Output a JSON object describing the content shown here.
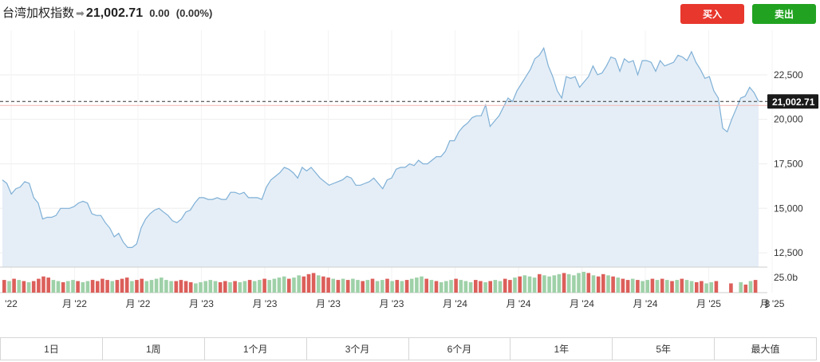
{
  "header": {
    "index_name": "台湾加权指数",
    "arrow_glyph": "➡",
    "price": "21,002.71",
    "change": "0.00",
    "change_pct": "(0.00%)",
    "buy_label": "买入",
    "sell_label": "卖出",
    "buy_color": "#e8372d",
    "sell_color": "#21a321"
  },
  "ranges": [
    "1日",
    "1周",
    "1个月",
    "3个月",
    "6个月",
    "1年",
    "5年",
    "最大值"
  ],
  "chart_data": {
    "type": "area",
    "line_color": "#7fb0d6",
    "fill_color": "#e5eef7",
    "current_value": 21002.71,
    "current_label": "21,002.71",
    "ylim": [
      11700,
      25000
    ],
    "y_ticks": [
      {
        "value": 12500,
        "label": "12,500"
      },
      {
        "value": 15000,
        "label": "15,000"
      },
      {
        "value": 17500,
        "label": "17,500"
      },
      {
        "value": 20000,
        "label": "20,000"
      },
      {
        "value": 22500,
        "label": "22,500"
      }
    ],
    "x_tick_labels": [
      "'22",
      "月 '22",
      "月 '22",
      "月 '23",
      "月 '23",
      "月 '23",
      "月 '23",
      "月 '24",
      "月 '24",
      "月 '24",
      "月 '24",
      "月 '25",
      "月 '25",
      "8"
    ],
    "volume_label": "25.0b",
    "values": [
      16600,
      16400,
      15800,
      16100,
      16200,
      16500,
      16400,
      15600,
      15300,
      14400,
      14500,
      14500,
      14600,
      15000,
      15000,
      15000,
      15100,
      15300,
      15400,
      15300,
      14700,
      14600,
      14600,
      14200,
      13900,
      13400,
      13600,
      13100,
      12800,
      12800,
      13000,
      13900,
      14400,
      14700,
      14900,
      15000,
      14800,
      14600,
      14300,
      14200,
      14400,
      14800,
      14900,
      15300,
      15600,
      15600,
      15500,
      15500,
      15600,
      15500,
      15500,
      15900,
      15900,
      15800,
      15900,
      15600,
      15600,
      15600,
      15500,
      16200,
      16600,
      16800,
      17000,
      17300,
      17200,
      17000,
      16700,
      17300,
      17100,
      17300,
      17000,
      16700,
      16500,
      16300,
      16400,
      16500,
      16600,
      16800,
      16700,
      16300,
      16300,
      16400,
      16500,
      16700,
      16400,
      16100,
      16600,
      16700,
      17200,
      17300,
      17300,
      17500,
      17400,
      17700,
      17500,
      17500,
      17700,
      17900,
      17900,
      18200,
      18800,
      18800,
      19300,
      19600,
      19800,
      20100,
      20200,
      20200,
      20800,
      19600,
      19900,
      20200,
      20700,
      21200,
      21000,
      21600,
      22000,
      22400,
      22800,
      23400,
      23600,
      24000,
      23000,
      22400,
      21600,
      21200,
      22400,
      22300,
      22400,
      21800,
      22100,
      22400,
      23000,
      22500,
      22600,
      23000,
      23500,
      23400,
      22700,
      23400,
      23200,
      23300,
      22500,
      23300,
      23300,
      23200,
      22700,
      23300,
      23000,
      23100,
      23200,
      23600,
      23500,
      23300,
      23800,
      23200,
      22800,
      22300,
      22400,
      21600,
      21200,
      19500,
      19300,
      20000,
      20600,
      21200,
      21300,
      21800,
      21500,
      21000
    ],
    "volume": [
      {
        "v": 0.55,
        "up": false
      },
      {
        "v": 0.5,
        "up": true
      },
      {
        "v": 0.6,
        "up": false
      },
      {
        "v": 0.55,
        "up": true
      },
      {
        "v": 0.5,
        "up": false
      },
      {
        "v": 0.45,
        "up": true
      },
      {
        "v": 0.5,
        "up": false
      },
      {
        "v": 0.6,
        "up": false
      },
      {
        "v": 0.7,
        "up": false
      },
      {
        "v": 0.65,
        "up": false
      },
      {
        "v": 0.55,
        "up": true
      },
      {
        "v": 0.5,
        "up": true
      },
      {
        "v": 0.45,
        "up": false
      },
      {
        "v": 0.5,
        "up": true
      },
      {
        "v": 0.55,
        "up": true
      },
      {
        "v": 0.5,
        "up": false
      },
      {
        "v": 0.45,
        "up": true
      },
      {
        "v": 0.5,
        "up": true
      },
      {
        "v": 0.55,
        "up": false
      },
      {
        "v": 0.5,
        "up": false
      },
      {
        "v": 0.6,
        "up": false
      },
      {
        "v": 0.55,
        "up": false
      },
      {
        "v": 0.5,
        "up": true
      },
      {
        "v": 0.55,
        "up": false
      },
      {
        "v": 0.6,
        "up": false
      },
      {
        "v": 0.65,
        "up": false
      },
      {
        "v": 0.5,
        "up": true
      },
      {
        "v": 0.55,
        "up": false
      },
      {
        "v": 0.6,
        "up": false
      },
      {
        "v": 0.5,
        "up": true
      },
      {
        "v": 0.55,
        "up": true
      },
      {
        "v": 0.6,
        "up": true
      },
      {
        "v": 0.65,
        "up": true
      },
      {
        "v": 0.55,
        "up": true
      },
      {
        "v": 0.5,
        "up": true
      },
      {
        "v": 0.5,
        "up": false
      },
      {
        "v": 0.55,
        "up": false
      },
      {
        "v": 0.5,
        "up": false
      },
      {
        "v": 0.45,
        "up": false
      },
      {
        "v": 0.4,
        "up": true
      },
      {
        "v": 0.45,
        "up": true
      },
      {
        "v": 0.5,
        "up": true
      },
      {
        "v": 0.55,
        "up": true
      },
      {
        "v": 0.5,
        "up": true
      },
      {
        "v": 0.45,
        "up": false
      },
      {
        "v": 0.5,
        "up": false
      },
      {
        "v": 0.45,
        "up": true
      },
      {
        "v": 0.5,
        "up": false
      },
      {
        "v": 0.45,
        "up": true
      },
      {
        "v": 0.5,
        "up": true
      },
      {
        "v": 0.55,
        "up": false
      },
      {
        "v": 0.5,
        "up": true
      },
      {
        "v": 0.55,
        "up": true
      },
      {
        "v": 0.6,
        "up": false
      },
      {
        "v": 0.55,
        "up": true
      },
      {
        "v": 0.6,
        "up": true
      },
      {
        "v": 0.65,
        "up": true
      },
      {
        "v": 0.7,
        "up": true
      },
      {
        "v": 0.6,
        "up": false
      },
      {
        "v": 0.65,
        "up": true
      },
      {
        "v": 0.75,
        "up": true
      },
      {
        "v": 0.7,
        "up": false
      },
      {
        "v": 0.8,
        "up": false
      },
      {
        "v": 0.85,
        "up": false
      },
      {
        "v": 0.75,
        "up": true
      },
      {
        "v": 0.7,
        "up": false
      },
      {
        "v": 0.65,
        "up": false
      },
      {
        "v": 0.6,
        "up": true
      },
      {
        "v": 0.55,
        "up": false
      },
      {
        "v": 0.6,
        "up": true
      },
      {
        "v": 0.55,
        "up": false
      },
      {
        "v": 0.6,
        "up": true
      },
      {
        "v": 0.55,
        "up": true
      },
      {
        "v": 0.5,
        "up": false
      },
      {
        "v": 0.55,
        "up": true
      },
      {
        "v": 0.6,
        "up": false
      },
      {
        "v": 0.5,
        "up": true
      },
      {
        "v": 0.55,
        "up": true
      },
      {
        "v": 0.6,
        "up": false
      },
      {
        "v": 0.5,
        "up": true
      },
      {
        "v": 0.55,
        "up": false
      },
      {
        "v": 0.5,
        "up": true
      },
      {
        "v": 0.55,
        "up": false
      },
      {
        "v": 0.6,
        "up": true
      },
      {
        "v": 0.65,
        "up": true
      },
      {
        "v": 0.7,
        "up": true
      },
      {
        "v": 0.6,
        "up": false
      },
      {
        "v": 0.55,
        "up": true
      },
      {
        "v": 0.5,
        "up": false
      },
      {
        "v": 0.45,
        "up": true
      },
      {
        "v": 0.5,
        "up": true
      },
      {
        "v": 0.55,
        "up": true
      },
      {
        "v": 0.6,
        "up": false
      },
      {
        "v": 0.55,
        "up": true
      },
      {
        "v": 0.5,
        "up": true
      },
      {
        "v": 0.45,
        "up": true
      },
      {
        "v": 0.55,
        "up": false
      },
      {
        "v": 0.5,
        "up": false
      },
      {
        "v": 0.45,
        "up": true
      },
      {
        "v": 0.5,
        "up": false
      },
      {
        "v": 0.55,
        "up": true
      },
      {
        "v": 0.5,
        "up": true
      },
      {
        "v": 0.6,
        "up": false
      },
      {
        "v": 0.55,
        "up": false
      },
      {
        "v": 0.65,
        "up": true
      },
      {
        "v": 0.7,
        "up": false
      },
      {
        "v": 0.75,
        "up": true
      },
      {
        "v": 0.7,
        "up": true
      },
      {
        "v": 0.65,
        "up": true
      },
      {
        "v": 0.8,
        "up": false
      },
      {
        "v": 0.75,
        "up": true
      },
      {
        "v": 0.7,
        "up": true
      },
      {
        "v": 0.75,
        "up": true
      },
      {
        "v": 0.8,
        "up": true
      },
      {
        "v": 0.85,
        "up": false
      },
      {
        "v": 0.8,
        "up": true
      },
      {
        "v": 0.75,
        "up": true
      },
      {
        "v": 0.85,
        "up": true
      },
      {
        "v": 0.9,
        "up": true
      },
      {
        "v": 0.85,
        "up": false
      },
      {
        "v": 0.75,
        "up": true
      },
      {
        "v": 0.7,
        "up": false
      },
      {
        "v": 0.8,
        "up": false
      },
      {
        "v": 0.75,
        "up": true
      },
      {
        "v": 0.7,
        "up": false
      },
      {
        "v": 0.65,
        "up": true
      },
      {
        "v": 0.6,
        "up": false
      },
      {
        "v": 0.55,
        "up": false
      },
      {
        "v": 0.6,
        "up": true
      },
      {
        "v": 0.55,
        "up": false
      },
      {
        "v": 0.5,
        "up": true
      },
      {
        "v": 0.55,
        "up": true
      },
      {
        "v": 0.6,
        "up": false
      },
      {
        "v": 0.55,
        "up": true
      },
      {
        "v": 0.6,
        "up": false
      },
      {
        "v": 0.55,
        "up": true
      },
      {
        "v": 0.5,
        "up": false
      },
      {
        "v": 0.55,
        "up": true
      },
      {
        "v": 0.6,
        "up": false
      },
      {
        "v": 0.55,
        "up": true
      },
      {
        "v": 0.5,
        "up": true
      },
      {
        "v": 0.45,
        "up": false
      },
      {
        "v": 0.5,
        "up": false
      },
      {
        "v": 0.4,
        "up": true
      },
      {
        "v": 0.45,
        "up": true
      },
      {
        "v": 0.5,
        "up": false
      },
      {
        "v": 0,
        "up": true
      },
      {
        "v": 0,
        "up": true
      },
      {
        "v": 0.4,
        "up": false
      },
      {
        "v": 0,
        "up": true
      },
      {
        "v": 0.45,
        "up": true
      },
      {
        "v": 0.35,
        "up": false
      },
      {
        "v": 0.5,
        "up": true
      },
      {
        "v": 0.55,
        "up": false
      }
    ]
  }
}
